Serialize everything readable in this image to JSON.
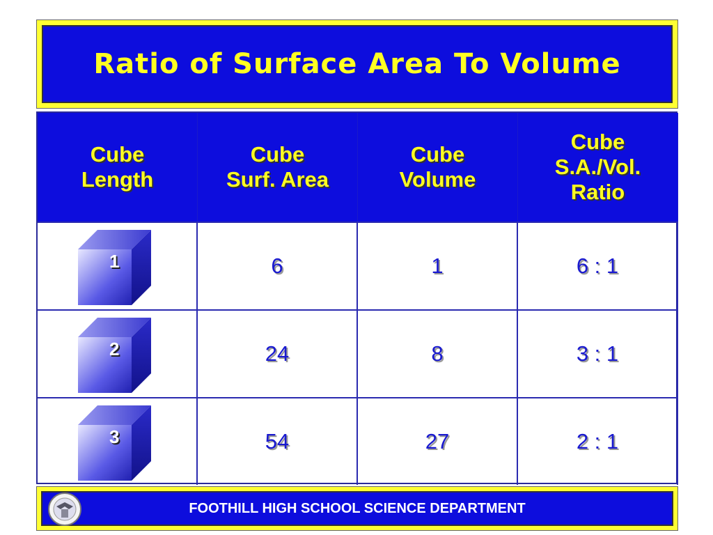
{
  "header": {
    "title": "Ratio of Surface Area To Volume"
  },
  "table": {
    "headers": [
      [
        "Cube",
        "Length"
      ],
      [
        "Cube",
        "Surf. Area"
      ],
      [
        "Cube",
        "Volume"
      ],
      [
        "Cube",
        "S.A./Vol.",
        "Ratio"
      ]
    ],
    "rows": [
      [
        1,
        6,
        1,
        "6 : 1"
      ],
      [
        2,
        24,
        8,
        "3 : 1"
      ],
      [
        3,
        54,
        27,
        "2 : 1"
      ]
    ]
  },
  "footer": {
    "text": "FOOTHILL HIGH SCHOOL SCIENCE DEPARTMENT"
  }
}
